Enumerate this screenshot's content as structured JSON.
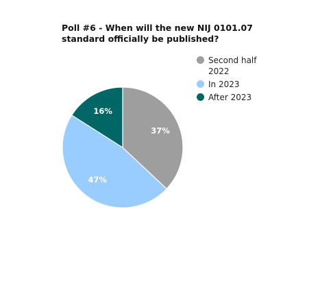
{
  "chart_data": {
    "type": "pie",
    "title": "Poll #6 - When will the new NIJ 0101.07 standard officially be published?",
    "categories": [
      "Second half 2022",
      "In 2023",
      "After 2023"
    ],
    "values": [
      37,
      47,
      16
    ],
    "value_labels": [
      "37%",
      "47%",
      "16%"
    ],
    "colors": [
      "#9e9e9e",
      "#99ccff",
      "#006666"
    ]
  }
}
